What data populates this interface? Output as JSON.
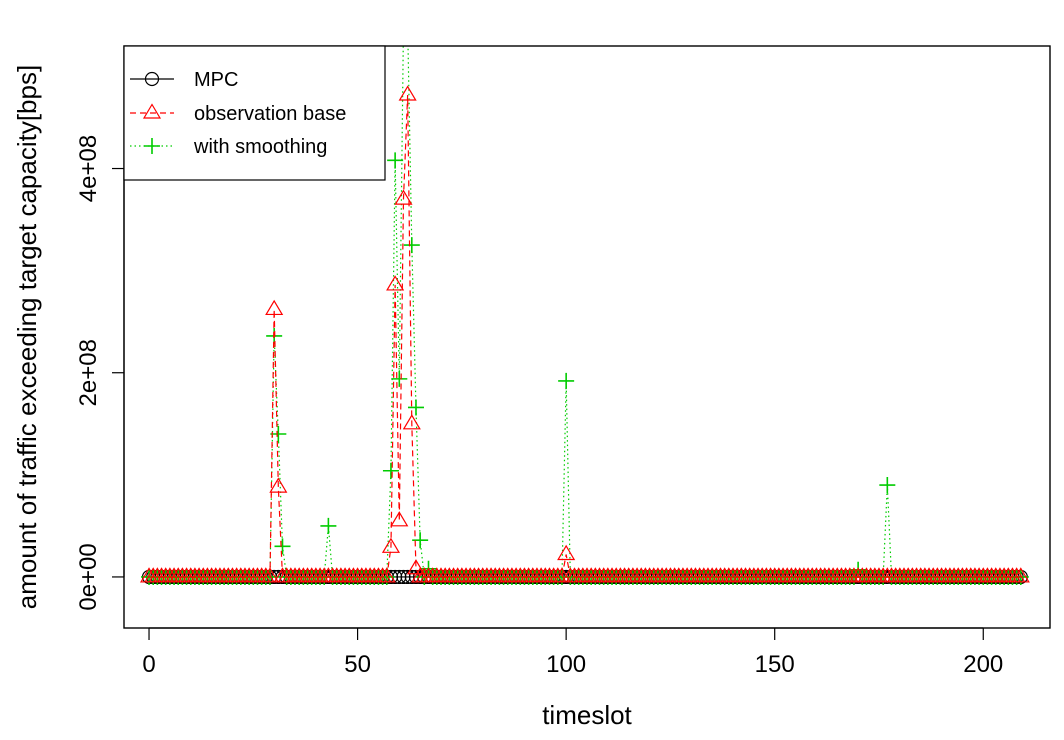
{
  "chart_data": {
    "type": "line",
    "title": "",
    "xlabel": "timeslot",
    "ylabel": "amount of traffic exceeding target capacity[bps]",
    "xlim": [
      -6,
      216
    ],
    "ylim": [
      -50000000.0,
      520000000.0
    ],
    "x_ticks": [
      0,
      50,
      100,
      150,
      200
    ],
    "x_tick_labels": [
      "0",
      "50",
      "100",
      "150",
      "200"
    ],
    "y_ticks": [
      0,
      200000000.0,
      400000000.0
    ],
    "y_tick_labels": [
      "0e+00",
      "2e+08",
      "4e+08"
    ],
    "grid": false,
    "legend_position": "top-left",
    "n_points": 210,
    "series": [
      {
        "name": "MPC",
        "color": "#000000",
        "marker": "circle",
        "line_style": "solid",
        "default_value": 0,
        "nonzero_points": []
      },
      {
        "name": "observation base",
        "color": "#ff0000",
        "marker": "triangle",
        "line_style": "dashed",
        "default_value": 0,
        "nonzero_points": [
          [
            30,
            262000000.0
          ],
          [
            31,
            88000000.0
          ],
          [
            58,
            29000000.0
          ],
          [
            59,
            286000000.0
          ],
          [
            60,
            55000000.0
          ],
          [
            61,
            370000000.0
          ],
          [
            62,
            472000000.0
          ],
          [
            63,
            150000000.0
          ],
          [
            64,
            8000000.0
          ],
          [
            100,
            22000000.0
          ]
        ]
      },
      {
        "name": "with smoothing",
        "color": "#00cc00",
        "marker": "plus",
        "line_style": "dotted",
        "default_value": 0,
        "nonzero_points": [
          [
            30,
            236000000.0
          ],
          [
            31,
            140000000.0
          ],
          [
            32,
            30000000.0
          ],
          [
            43,
            50000000.0
          ],
          [
            58,
            104000000.0
          ],
          [
            59,
            408000000.0
          ],
          [
            60,
            194000000.0
          ],
          [
            61,
            540000000.0
          ],
          [
            62,
            540000000.0
          ],
          [
            63,
            325000000.0
          ],
          [
            64,
            166000000.0
          ],
          [
            65,
            36000000.0
          ],
          [
            67,
            8000000.0
          ],
          [
            100,
            192000000.0
          ],
          [
            170,
            7000000.0
          ],
          [
            177,
            90000000.0
          ]
        ]
      }
    ]
  }
}
